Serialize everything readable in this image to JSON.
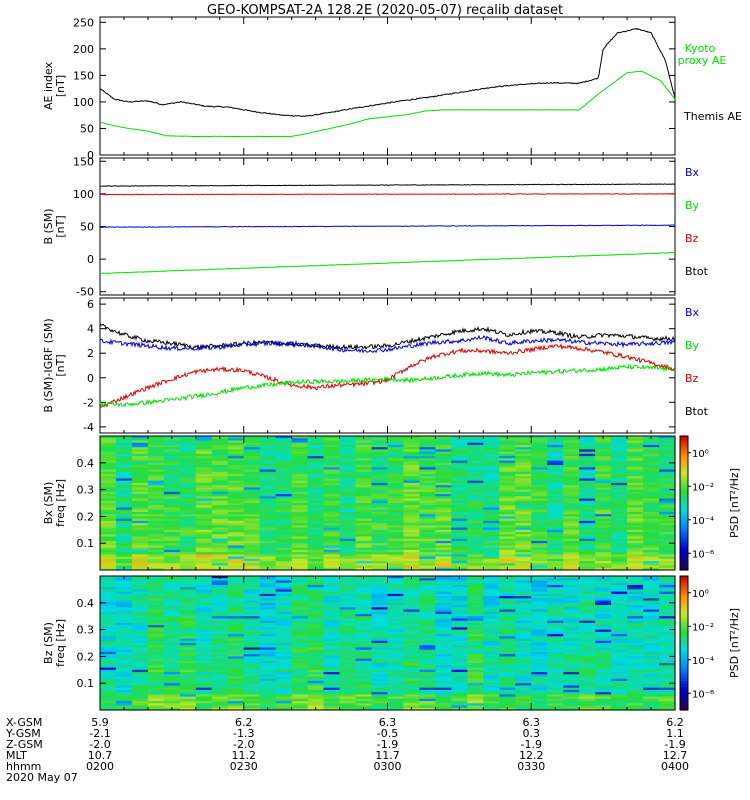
{
  "title": "GEO-KOMPSAT-2A 128.2E (2020-05-07) recalib dataset",
  "colors": {
    "black": "#000000",
    "green": "#00e000",
    "red": "#e00000",
    "blue": "#0000e0",
    "cbar_axis": "#000000"
  },
  "chart_data": [
    {
      "type": "line",
      "panel": "ae",
      "ylabel_lines": [
        "AE index",
        "[nT]"
      ],
      "ylim": [
        0,
        260
      ],
      "yticks": [
        0,
        50,
        100,
        150,
        200,
        250
      ],
      "xlim": [
        0,
        120
      ],
      "series": [
        {
          "name": "Themis AE",
          "color": "black",
          "x": [
            0,
            3,
            6,
            10,
            13,
            17,
            22,
            27,
            32,
            38,
            43,
            48,
            53,
            58,
            63,
            68,
            75,
            82,
            88,
            94,
            100,
            104,
            105,
            108,
            112,
            115,
            118,
            120
          ],
          "y": [
            125,
            105,
            100,
            102,
            95,
            100,
            92,
            90,
            82,
            75,
            73,
            80,
            88,
            95,
            102,
            108,
            118,
            128,
            133,
            136,
            135,
            145,
            200,
            230,
            238,
            230,
            178,
            107
          ]
        },
        {
          "name": "Kyoto proxy AE",
          "color": "green",
          "x": [
            0,
            3,
            6,
            10,
            14,
            20,
            25,
            30,
            35,
            40,
            44,
            48,
            52,
            56,
            60,
            64,
            68,
            72,
            78,
            84,
            90,
            95,
            100,
            104,
            110,
            113,
            117,
            120
          ],
          "y": [
            62,
            55,
            50,
            45,
            36,
            35,
            35,
            35,
            35,
            35,
            42,
            50,
            58,
            68,
            72,
            76,
            83,
            85,
            85,
            85,
            85,
            85,
            85,
            115,
            155,
            158,
            140,
            105
          ]
        }
      ],
      "legend": [
        "Kyoto proxy AE",
        "Themis AE"
      ]
    },
    {
      "type": "line",
      "panel": "b_sm",
      "ylabel_lines": [
        "B (SM)",
        "[nT]"
      ],
      "ylim": [
        -55,
        155
      ],
      "yticks": [
        -50,
        0,
        50,
        100,
        150
      ],
      "xlim": [
        0,
        120
      ],
      "series": [
        {
          "name": "Bx",
          "color": "black",
          "x": [
            0,
            120
          ],
          "y": [
            112,
            115
          ]
        },
        {
          "name": "By",
          "color": "green",
          "x": [
            0,
            120
          ],
          "y": [
            -22,
            10
          ]
        },
        {
          "name": "Bz",
          "color": "red",
          "x": [
            0,
            120
          ],
          "y": [
            99,
            100
          ]
        },
        {
          "name": "Btot",
          "color": "blue",
          "x": [
            0,
            120
          ],
          "y": [
            49,
            52
          ]
        }
      ],
      "legend": [
        "Bx",
        "By",
        "Bz",
        "Btot"
      ]
    },
    {
      "type": "line",
      "panel": "b_igrf",
      "ylabel_lines": [
        "B (SM)-IGRF (SM)",
        "[nT]"
      ],
      "ylim": [
        -4.5,
        6.5
      ],
      "yticks": [
        -4,
        -2,
        0,
        2,
        4,
        6
      ],
      "xlim": [
        0,
        120
      ],
      "series": [
        {
          "name": "Btot",
          "color": "black",
          "x": [
            0,
            5,
            10,
            15,
            20,
            25,
            30,
            35,
            40,
            45,
            50,
            55,
            60,
            65,
            70,
            75,
            80,
            85,
            90,
            95,
            100,
            105,
            110,
            115,
            120
          ],
          "y": [
            4.3,
            3.5,
            3.0,
            2.8,
            2.5,
            2.6,
            2.8,
            2.9,
            2.7,
            2.6,
            2.5,
            2.5,
            2.6,
            3.0,
            3.4,
            3.8,
            4.0,
            3.5,
            3.8,
            3.7,
            3.3,
            3.5,
            3.4,
            3.2,
            3.2
          ]
        },
        {
          "name": "By",
          "color": "blue",
          "x": [
            0,
            5,
            10,
            15,
            20,
            25,
            30,
            35,
            40,
            45,
            50,
            55,
            60,
            65,
            70,
            75,
            80,
            85,
            90,
            95,
            100,
            105,
            110,
            115,
            120
          ],
          "y": [
            3.0,
            2.8,
            2.6,
            2.4,
            2.4,
            2.5,
            2.7,
            2.8,
            2.8,
            2.6,
            2.3,
            2.2,
            2.3,
            2.6,
            2.9,
            3.0,
            3.3,
            2.8,
            3.0,
            3.1,
            2.9,
            2.8,
            2.7,
            2.8,
            2.9
          ]
        },
        {
          "name": "Bz",
          "color": "red",
          "x": [
            0,
            5,
            10,
            15,
            20,
            25,
            30,
            35,
            40,
            45,
            50,
            55,
            60,
            62,
            65,
            70,
            75,
            80,
            85,
            90,
            95,
            100,
            105,
            110,
            115,
            120
          ],
          "y": [
            -2.4,
            -1.6,
            -0.8,
            -0.1,
            0.5,
            0.7,
            0.6,
            0.0,
            -0.6,
            -0.8,
            -0.6,
            -0.5,
            -0.2,
            0.3,
            1.0,
            1.8,
            2.2,
            2.2,
            2.0,
            2.3,
            2.6,
            2.4,
            2.1,
            1.7,
            1.2,
            0.7
          ]
        },
        {
          "name": "Bx",
          "color": "green",
          "x": [
            0,
            5,
            10,
            15,
            20,
            25,
            30,
            35,
            40,
            45,
            50,
            55,
            60,
            65,
            70,
            75,
            80,
            85,
            90,
            95,
            100,
            105,
            110,
            115,
            120
          ],
          "y": [
            -2.1,
            -2.2,
            -2.0,
            -1.8,
            -1.5,
            -1.2,
            -0.8,
            -0.6,
            -0.4,
            -0.3,
            -0.3,
            -0.2,
            -0.1,
            -0.2,
            0.0,
            0.2,
            0.4,
            0.2,
            0.4,
            0.5,
            0.6,
            0.7,
            0.9,
            0.8,
            0.7
          ]
        }
      ],
      "legend": [
        "Bx",
        "By",
        "Bz",
        "Btot"
      ]
    },
    {
      "type": "heatmap",
      "panel": "bx_psd",
      "ylabel_lines": [
        "Bx (SM)",
        "freq [Hz]"
      ],
      "ylim": [
        0,
        0.5
      ],
      "yticks": [
        0.1,
        0.2,
        0.3,
        0.4
      ],
      "colorbar_label": "PSD [nT²/Hz]",
      "colorbar_ticks": [
        "10⁰",
        "10⁻²",
        "10⁻⁴",
        "10⁻⁶"
      ],
      "colorbar_tick_exponents": [
        0,
        -2,
        -4,
        -6
      ],
      "clim_exponent": [
        -7,
        1
      ]
    },
    {
      "type": "heatmap",
      "panel": "bz_psd",
      "ylabel_lines": [
        "Bz (SM)",
        "freq [Hz]"
      ],
      "ylim": [
        0,
        0.5
      ],
      "yticks": [
        0.1,
        0.2,
        0.3,
        0.4
      ],
      "colorbar_label": "PSD [nT²/Hz]",
      "colorbar_ticks": [
        "10⁰",
        "10⁻²",
        "10⁻⁴",
        "10⁻⁶"
      ],
      "colorbar_tick_exponents": [
        0,
        -2,
        -4,
        -6
      ],
      "clim_exponent": [
        -7,
        1
      ]
    }
  ],
  "x_axis": {
    "rows": [
      {
        "label": "X-GSM",
        "values": [
          "5.9",
          "6.2",
          "6.3",
          "6.3",
          "6.2"
        ]
      },
      {
        "label": "Y-GSM",
        "values": [
          "-2.1",
          "-1.3",
          "-0.5",
          "0.3",
          "1.1"
        ]
      },
      {
        "label": "Z-GSM",
        "values": [
          "-2.0",
          "-2.0",
          "-1.9",
          "-1.9",
          "-1.9"
        ]
      },
      {
        "label": "MLT",
        "values": [
          "10.7",
          "11.2",
          "11.7",
          "12.2",
          "12.7"
        ]
      },
      {
        "label": "hhmm",
        "values": [
          "0200",
          "0230",
          "0300",
          "0330",
          "0400"
        ]
      }
    ],
    "tick_positions": [
      0,
      30,
      60,
      90,
      120
    ],
    "date": "2020 May 07"
  }
}
